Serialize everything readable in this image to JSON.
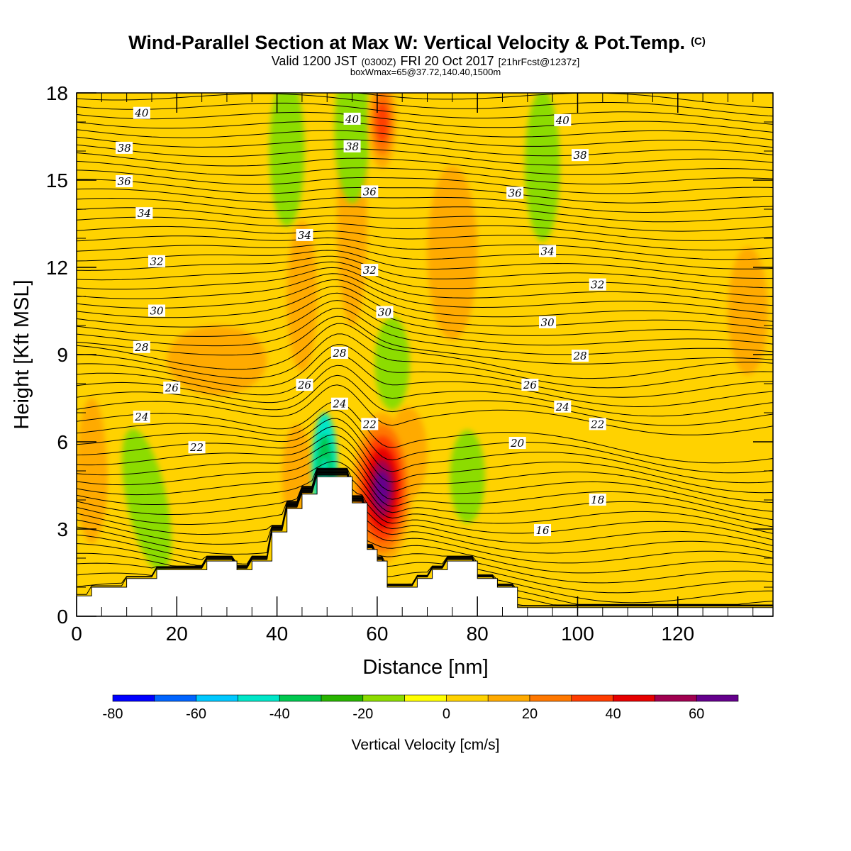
{
  "title": {
    "main": "Wind-Parallel Section at Max W: Vertical Velocity & Pot.Temp.",
    "copyright": "(C)",
    "valid_a": "Valid 1200 JST",
    "valid_b": "(0300Z)",
    "valid_c": "FRI 20 Oct 2017",
    "valid_d": "[21hrFcst@1237z]",
    "box": "boxWmax=65@37.72,140.40,1500m"
  },
  "chart_data": {
    "type": "contour",
    "xlabel": "Distance [nm]",
    "ylabel": "Height [Kft MSL]",
    "xlim": [
      0,
      139
    ],
    "ylim": [
      0,
      18
    ],
    "xticks": [
      0,
      20,
      40,
      60,
      80,
      100,
      120
    ],
    "yticks": [
      0,
      3,
      6,
      9,
      12,
      15,
      18
    ],
    "filled_field": "Vertical Velocity [cm/s]",
    "contour_field": "Potential Temperature",
    "colorbar": {
      "label": "Vertical Velocity [cm/s]",
      "levels": [
        -80,
        -70,
        -60,
        -50,
        -40,
        -30,
        -20,
        -10,
        0,
        10,
        20,
        30,
        40,
        50,
        60,
        70
      ],
      "tick_labels": [
        -80,
        -60,
        -40,
        -20,
        0,
        20,
        40,
        60
      ],
      "colors": [
        "#0000ff",
        "#0064ff",
        "#00c8ff",
        "#00e6c8",
        "#00c850",
        "#28b400",
        "#8cdc00",
        "#ffff00",
        "#ffd200",
        "#ffaa00",
        "#ff7800",
        "#ff3c00",
        "#e60000",
        "#a00050",
        "#64008c"
      ]
    },
    "terrain_kft": [
      [
        0,
        0.7
      ],
      [
        3,
        0.7
      ],
      [
        3,
        1.0
      ],
      [
        10,
        1.0
      ],
      [
        10,
        1.3
      ],
      [
        16,
        1.3
      ],
      [
        16,
        1.6
      ],
      [
        26,
        1.6
      ],
      [
        26,
        1.9
      ],
      [
        32,
        1.9
      ],
      [
        32,
        1.6
      ],
      [
        35,
        1.6
      ],
      [
        35,
        1.9
      ],
      [
        39,
        1.9
      ],
      [
        39,
        2.9
      ],
      [
        42,
        2.9
      ],
      [
        42,
        3.7
      ],
      [
        45,
        3.7
      ],
      [
        45,
        4.2
      ],
      [
        48,
        4.2
      ],
      [
        48,
        4.8
      ],
      [
        55,
        4.8
      ],
      [
        55,
        3.9
      ],
      [
        58,
        3.9
      ],
      [
        58,
        2.3
      ],
      [
        60,
        2.3
      ],
      [
        60,
        1.9
      ],
      [
        62,
        1.9
      ],
      [
        62,
        1.0
      ],
      [
        68,
        1.0
      ],
      [
        68,
        1.3
      ],
      [
        71,
        1.3
      ],
      [
        71,
        1.6
      ],
      [
        74,
        1.6
      ],
      [
        74,
        1.9
      ],
      [
        80,
        1.9
      ],
      [
        80,
        1.3
      ],
      [
        84,
        1.3
      ],
      [
        84,
        1.0
      ],
      [
        88,
        1.0
      ],
      [
        88,
        0.3
      ],
      [
        139,
        0.3
      ]
    ],
    "isentropes": [
      {
        "label": "16",
        "label_at": [
          93,
          2.95
        ]
      },
      {
        "label": "18",
        "label_at": [
          104,
          4.0
        ]
      },
      {
        "label": "20",
        "label_at": [
          88,
          5.95
        ]
      },
      {
        "label": "22",
        "label_at": [
          24,
          5.8
        ]
      },
      {
        "label": "22",
        "label_at": [
          58.5,
          6.6
        ]
      },
      {
        "label": "22",
        "label_at": [
          104,
          6.6
        ]
      },
      {
        "label": "24",
        "label_at": [
          13,
          6.85
        ]
      },
      {
        "label": "24",
        "label_at": [
          52.5,
          7.3
        ]
      },
      {
        "label": "24",
        "label_at": [
          97,
          7.2
        ]
      },
      {
        "label": "26",
        "label_at": [
          19,
          7.85
        ]
      },
      {
        "label": "26",
        "label_at": [
          45.5,
          7.95
        ]
      },
      {
        "label": "26",
        "label_at": [
          90.5,
          7.95
        ]
      },
      {
        "label": "28",
        "label_at": [
          13,
          9.25
        ]
      },
      {
        "label": "28",
        "label_at": [
          52.5,
          9.05
        ]
      },
      {
        "label": "28",
        "label_at": [
          100.5,
          8.95
        ]
      },
      {
        "label": "30",
        "label_at": [
          16,
          10.5
        ]
      },
      {
        "label": "30",
        "label_at": [
          61.5,
          10.45
        ]
      },
      {
        "label": "30",
        "label_at": [
          94,
          10.1
        ]
      },
      {
        "label": "32",
        "label_at": [
          16,
          12.2
        ]
      },
      {
        "label": "32",
        "label_at": [
          58.5,
          11.9
        ]
      },
      {
        "label": "32",
        "label_at": [
          104,
          11.4
        ]
      },
      {
        "label": "34",
        "label_at": [
          13.5,
          13.85
        ]
      },
      {
        "label": "34",
        "label_at": [
          45.5,
          13.1
        ]
      },
      {
        "label": "34",
        "label_at": [
          94,
          12.55
        ]
      },
      {
        "label": "36",
        "label_at": [
          9.5,
          14.95
        ]
      },
      {
        "label": "36",
        "label_at": [
          58.5,
          14.6
        ]
      },
      {
        "label": "36",
        "label_at": [
          87.5,
          14.55
        ]
      },
      {
        "label": "38",
        "label_at": [
          9.5,
          16.1
        ]
      },
      {
        "label": "38",
        "label_at": [
          55,
          16.15
        ]
      },
      {
        "label": "38",
        "label_at": [
          100.5,
          15.85
        ]
      },
      {
        "label": "40",
        "label_at": [
          13,
          17.3
        ]
      },
      {
        "label": "40",
        "label_at": [
          55,
          17.1
        ]
      },
      {
        "label": "40",
        "label_at": [
          97,
          17.05
        ]
      }
    ],
    "w_features": [
      {
        "kind": "updraft",
        "center": [
          61,
          17.0
        ],
        "peak_cm_s": 40,
        "note": "upper plume"
      },
      {
        "kind": "updraft",
        "center": [
          61,
          4.4
        ],
        "peak_cm_s": 65
      },
      {
        "kind": "downdraft",
        "center": [
          49.5,
          5.1
        ],
        "peak_cm_s": -45
      },
      {
        "kind": "downdraft",
        "center": [
          14,
          4.0
        ],
        "peak_cm_s": -15
      },
      {
        "kind": "downdraft",
        "center": [
          78,
          4.8
        ],
        "peak_cm_s": -15
      },
      {
        "kind": "downdraft",
        "center": [
          93,
          15.5
        ],
        "peak_cm_s": -15
      },
      {
        "kind": "downdraft",
        "center": [
          42,
          16.0
        ],
        "peak_cm_s": -20
      },
      {
        "kind": "downdraft",
        "center": [
          55,
          16.8
        ],
        "peak_cm_s": -15
      },
      {
        "kind": "downdraft",
        "center": [
          63,
          8.7
        ],
        "peak_cm_s": -12
      },
      {
        "kind": "updraft",
        "center": [
          3,
          4.5
        ],
        "peak_cm_s": 20
      }
    ]
  }
}
